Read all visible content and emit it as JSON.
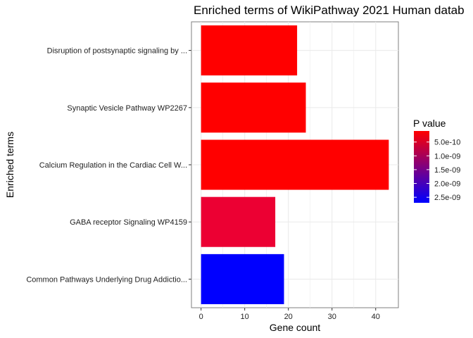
{
  "chart_data": {
    "type": "bar",
    "orientation": "horizontal",
    "title": "Enriched terms of WikiPathway 2021 Human datab",
    "xlabel": "Gene count",
    "ylabel": "Enriched terms",
    "xlim": [
      -2.2,
      45.2
    ],
    "xticks": [
      0,
      10,
      20,
      30,
      40
    ],
    "categories": [
      "Disruption of postsynaptic signaling by ...",
      "Synaptic Vesicle Pathway WP2267",
      "Calcium Regulation in the Cardiac Cell W...",
      "GABA receptor Signaling WP4159",
      "Common Pathways Underlying Drug Addictio..."
    ],
    "values": [
      22,
      24,
      43,
      17,
      19
    ],
    "p_values": [
      1e-10,
      1e-10,
      1e-10,
      5e-10,
      2.7e-09
    ],
    "bar_colors": [
      "#ff0000",
      "#ff0000",
      "#ff0000",
      "#ec0033",
      "#0000ff"
    ],
    "grid": true,
    "panel_background": "#ffffff",
    "grid_color": "#ebebeb",
    "legend": {
      "title": "P value",
      "position": "right",
      "low_color": "#ff0000",
      "high_color": "#0000ff",
      "range": [
        1e-10,
        2.7e-09
      ],
      "breaks": [
        5e-10,
        1e-09,
        1.5e-09,
        2e-09,
        2.5e-09
      ],
      "labels": [
        "5.0e-10",
        "1.0e-09",
        "1.5e-09",
        "2.0e-09",
        "2.5e-09"
      ]
    }
  }
}
